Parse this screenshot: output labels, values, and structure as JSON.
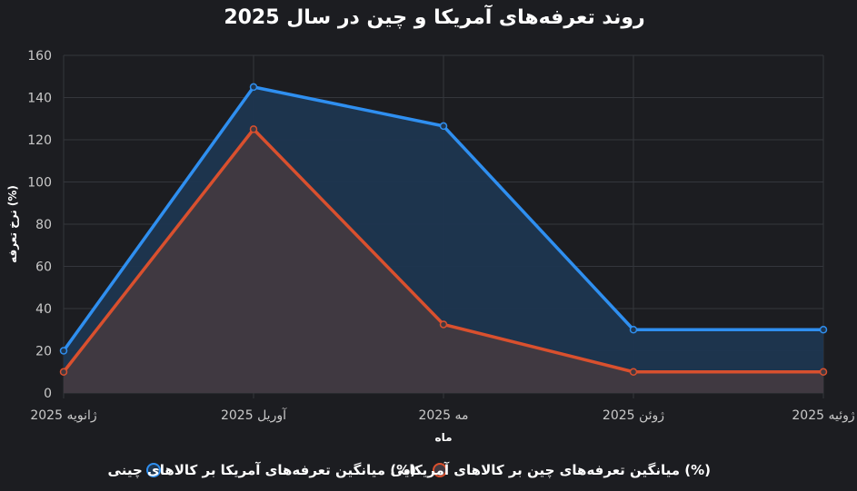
{
  "chart_data": {
    "type": "area",
    "title": "روند تعرفه‌های آمریکا و چین در سال 2025",
    "xlabel": "ماه",
    "ylabel": "نرخ تعرفه (%)",
    "categories": [
      "ژانویه 2025",
      "آوریل 2025",
      "مه 2025",
      "ژوئن 2025",
      "ژوئیه 2025"
    ],
    "ylim": [
      0,
      160
    ],
    "yticks": [
      0,
      20,
      40,
      60,
      80,
      100,
      120,
      140,
      160
    ],
    "grid": true,
    "legend_position": "bottom",
    "series": [
      {
        "name": "میانگین تعرفه‌های آمریکا بر کالاهای چینی (%)",
        "values": [
          20.0,
          145.0,
          126.5,
          30.0,
          30.0
        ],
        "color": "#2f8ff0",
        "fill": "#1e3650"
      },
      {
        "name": "میانگین تعرفه‌های چین بر کالاهای آمریکایی (%)",
        "values": [
          10.0,
          125.0,
          32.5,
          10.0,
          10.0
        ],
        "color": "#d9502e",
        "fill": "#433940"
      }
    ]
  }
}
